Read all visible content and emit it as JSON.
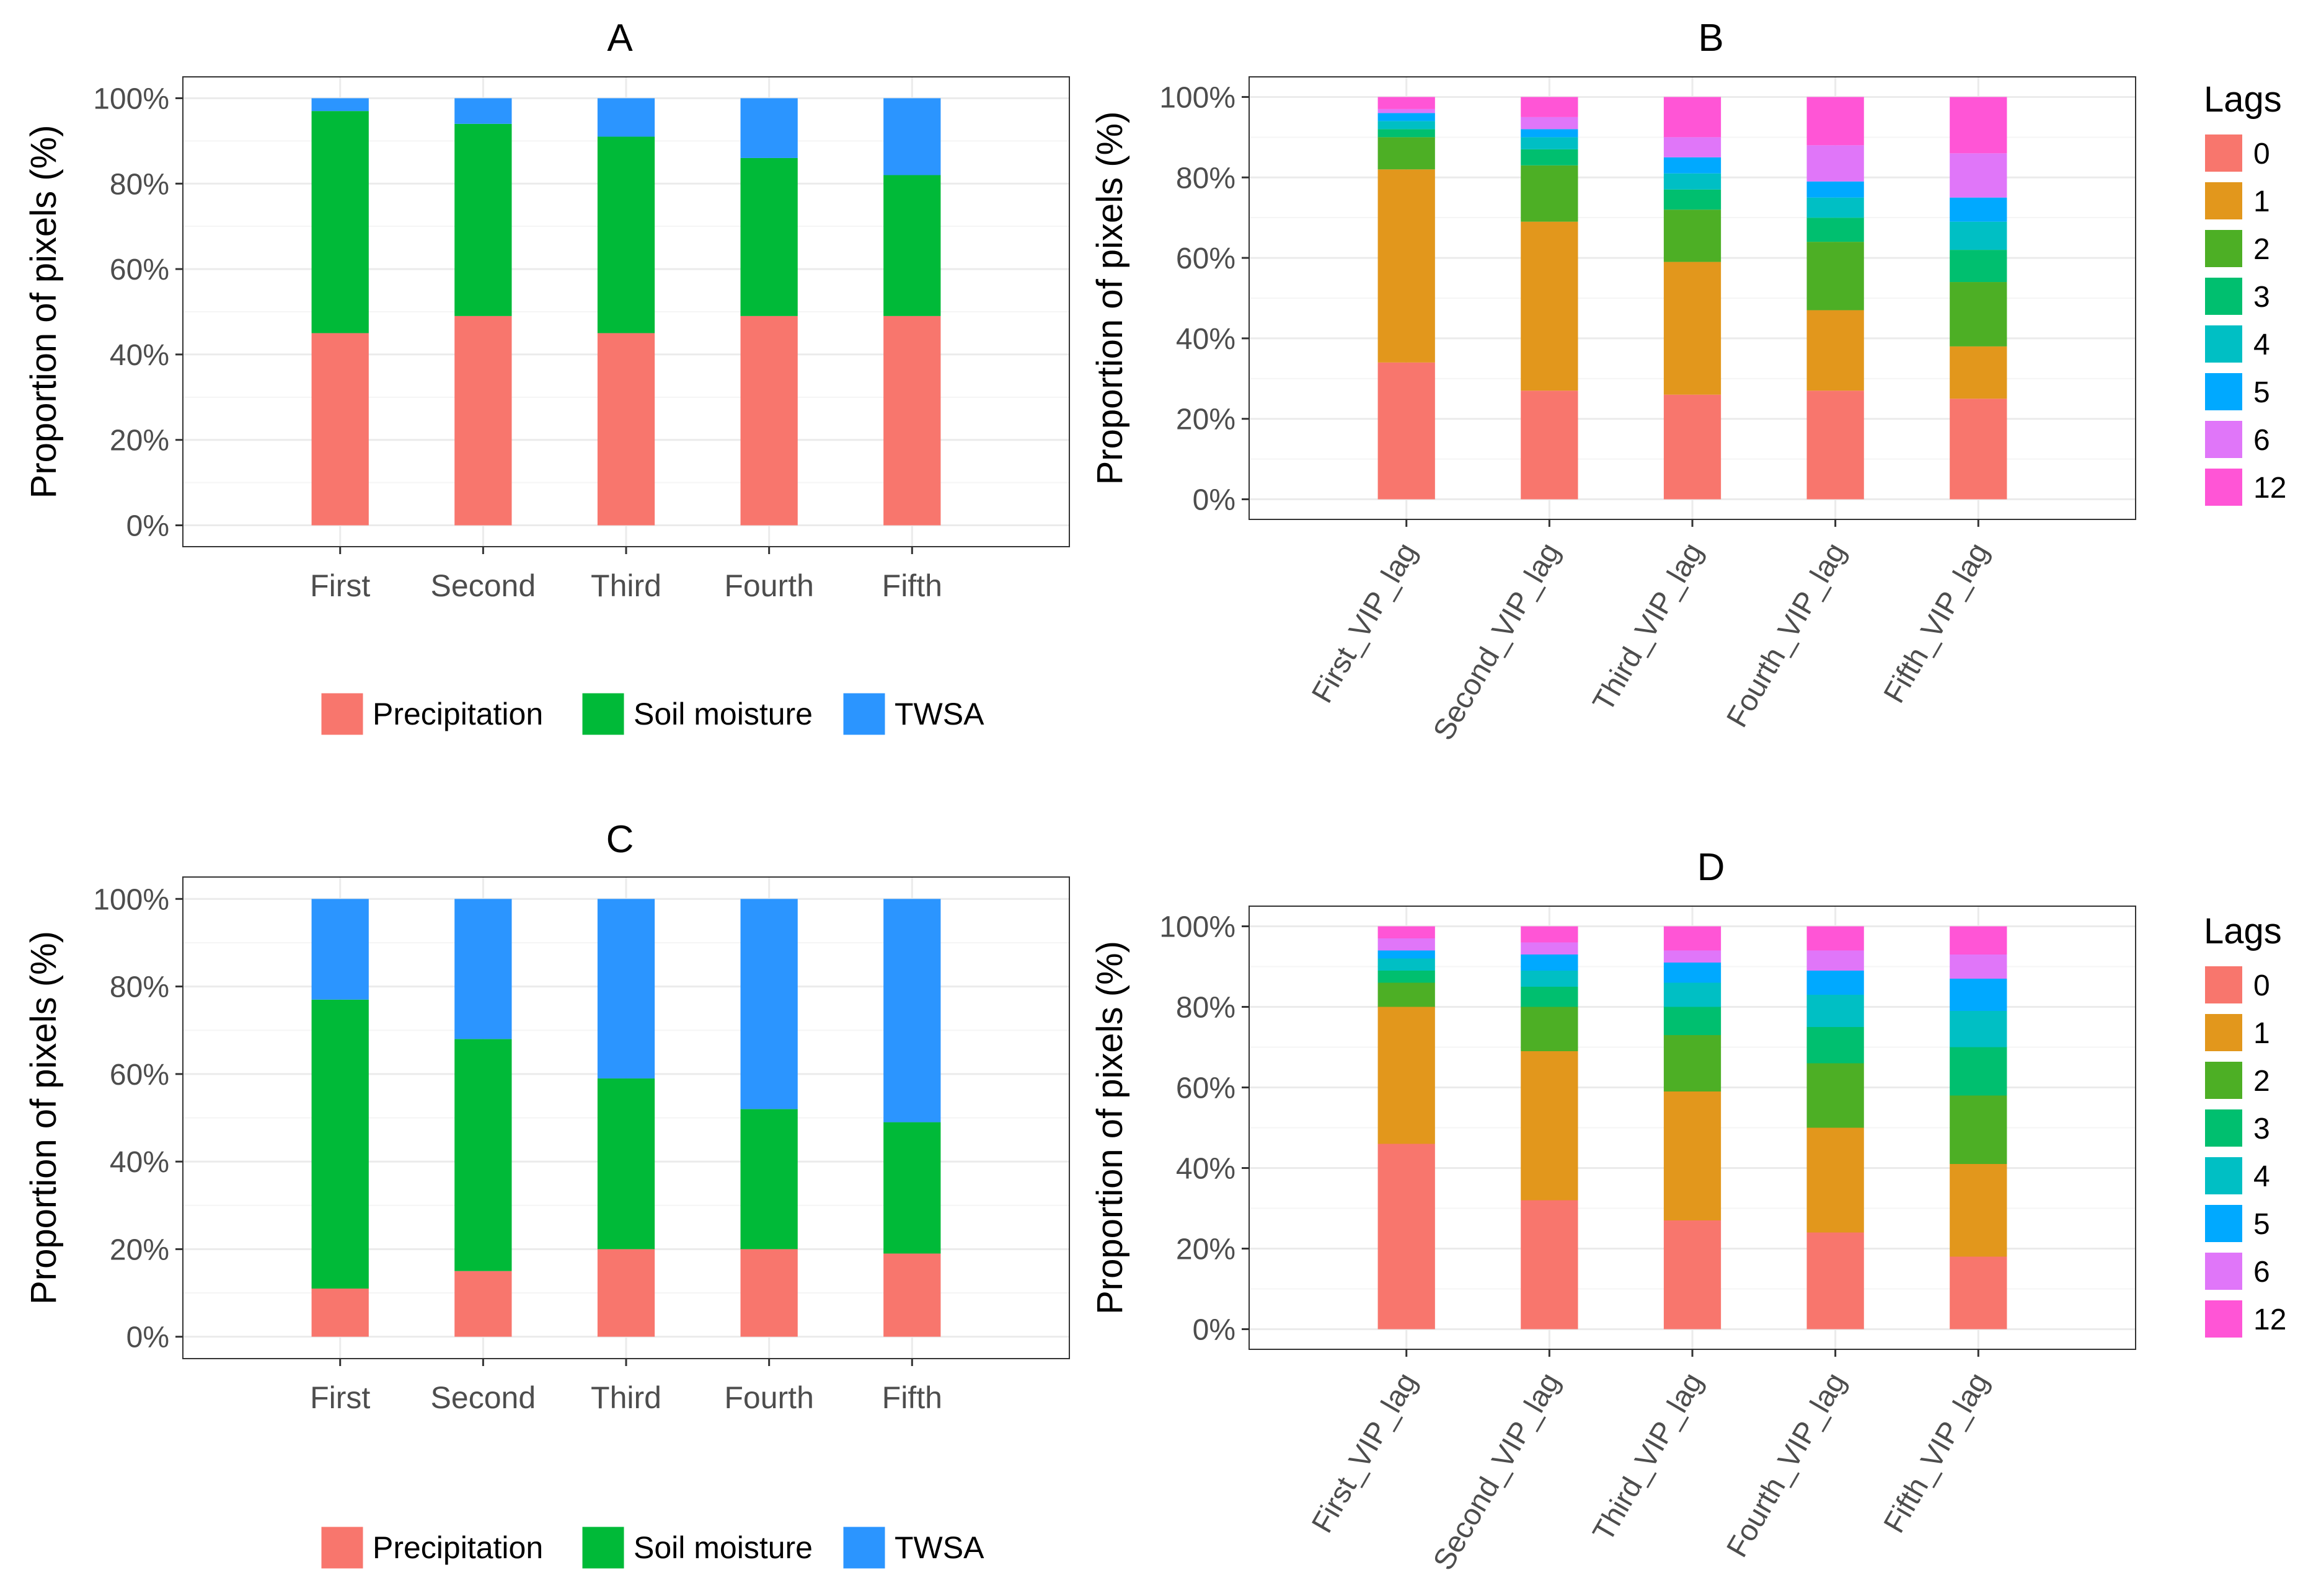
{
  "chart_data": [
    {
      "panel": "A",
      "type": "bar",
      "stacked": true,
      "title": "A",
      "xlabel": "",
      "ylabel": "Proportion of pixels (%)",
      "ylim": [
        0,
        100
      ],
      "yticks": [
        "0%",
        "20%",
        "40%",
        "60%",
        "80%",
        "100%"
      ],
      "categories": [
        "First",
        "Second",
        "Third",
        "Fourth",
        "Fifth"
      ],
      "series": [
        {
          "name": "Precipitation",
          "color": "#F8766D",
          "values": [
            45,
            49,
            45,
            49,
            49
          ]
        },
        {
          "name": "Soil moisture",
          "color": "#00BA38",
          "values": [
            52,
            45,
            46,
            37,
            33
          ]
        },
        {
          "name": "TWSA",
          "color": "#2B95FF",
          "values": [
            3,
            6,
            9,
            14,
            18
          ]
        }
      ],
      "legend": {
        "position": "bottom",
        "labels": [
          "Precipitation",
          "Soil moisture",
          "TWSA"
        ]
      },
      "grid": true
    },
    {
      "panel": "B",
      "type": "bar",
      "stacked": true,
      "title": "B",
      "xlabel": "",
      "ylabel": "Proportion of pixels (%)",
      "ylim": [
        0,
        100
      ],
      "yticks": [
        "0%",
        "20%",
        "40%",
        "60%",
        "80%",
        "100%"
      ],
      "categories": [
        "First_VIP_lag",
        "Second_VIP_lag",
        "Third_VIP_lag",
        "Fourth_VIP_lag",
        "Fifth_VIP_lag"
      ],
      "series": [
        {
          "name": "0",
          "color": "#F8766D",
          "values": [
            34,
            27,
            26,
            27,
            25
          ]
        },
        {
          "name": "1",
          "color": "#E2971C",
          "values": [
            48,
            42,
            33,
            20,
            13
          ]
        },
        {
          "name": "2",
          "color": "#4DAF25",
          "values": [
            8,
            14,
            13,
            17,
            16
          ]
        },
        {
          "name": "3",
          "color": "#00BF6F",
          "values": [
            2,
            4,
            5,
            6,
            8
          ]
        },
        {
          "name": "4",
          "color": "#00BFC4",
          "values": [
            2,
            3,
            4,
            5,
            7
          ]
        },
        {
          "name": "5",
          "color": "#00A9FF",
          "values": [
            2,
            2,
            4,
            4,
            6
          ]
        },
        {
          "name": "6",
          "color": "#E076F9",
          "values": [
            1,
            3,
            5,
            9,
            11
          ]
        },
        {
          "name": "12",
          "color": "#FF55D6",
          "values": [
            3,
            5,
            10,
            12,
            14
          ]
        }
      ],
      "legend": {
        "position": "right",
        "title": "Lags",
        "labels": [
          "0",
          "1",
          "2",
          "3",
          "4",
          "5",
          "6",
          "12"
        ]
      },
      "grid": true
    },
    {
      "panel": "C",
      "type": "bar",
      "stacked": true,
      "title": "C",
      "xlabel": "",
      "ylabel": "Proportion of pixels (%)",
      "ylim": [
        0,
        100
      ],
      "yticks": [
        "0%",
        "20%",
        "40%",
        "60%",
        "80%",
        "100%"
      ],
      "categories": [
        "First",
        "Second",
        "Third",
        "Fourth",
        "Fifth"
      ],
      "series": [
        {
          "name": "Precipitation",
          "color": "#F8766D",
          "values": [
            11,
            15,
            20,
            20,
            19
          ]
        },
        {
          "name": "Soil moisture",
          "color": "#00BA38",
          "values": [
            66,
            53,
            39,
            32,
            30
          ]
        },
        {
          "name": "TWSA",
          "color": "#2B95FF",
          "values": [
            23,
            32,
            41,
            48,
            51
          ]
        }
      ],
      "legend": {
        "position": "bottom",
        "labels": [
          "Precipitation",
          "Soil moisture",
          "TWSA"
        ]
      },
      "grid": true
    },
    {
      "panel": "D",
      "type": "bar",
      "stacked": true,
      "title": "D",
      "xlabel": "",
      "ylabel": "Proportion of pixels (%)",
      "ylim": [
        0,
        100
      ],
      "yticks": [
        "0%",
        "20%",
        "40%",
        "60%",
        "80%",
        "100%"
      ],
      "categories": [
        "First_VIP_lag",
        "Second_VIP_lag",
        "Third_VIP_lag",
        "Fourth_VIP_lag",
        "Fifth_VIP_lag"
      ],
      "series": [
        {
          "name": "0",
          "color": "#F8766D",
          "values": [
            46,
            32,
            27,
            24,
            18
          ]
        },
        {
          "name": "1",
          "color": "#E2971C",
          "values": [
            34,
            37,
            32,
            26,
            23
          ]
        },
        {
          "name": "2",
          "color": "#4DAF25",
          "values": [
            6,
            11,
            14,
            16,
            17
          ]
        },
        {
          "name": "3",
          "color": "#00BF6F",
          "values": [
            3,
            5,
            7,
            9,
            12
          ]
        },
        {
          "name": "4",
          "color": "#00BFC4",
          "values": [
            3,
            4,
            6,
            8,
            9
          ]
        },
        {
          "name": "5",
          "color": "#00A9FF",
          "values": [
            2,
            4,
            5,
            6,
            8
          ]
        },
        {
          "name": "6",
          "color": "#E076F9",
          "values": [
            3,
            3,
            3,
            5,
            6
          ]
        },
        {
          "name": "12",
          "color": "#FF55D6",
          "values": [
            3,
            4,
            6,
            6,
            7
          ]
        }
      ],
      "legend": {
        "position": "right",
        "title": "Lags",
        "labels": [
          "0",
          "1",
          "2",
          "3",
          "4",
          "5",
          "6",
          "12"
        ]
      },
      "grid": true
    }
  ]
}
